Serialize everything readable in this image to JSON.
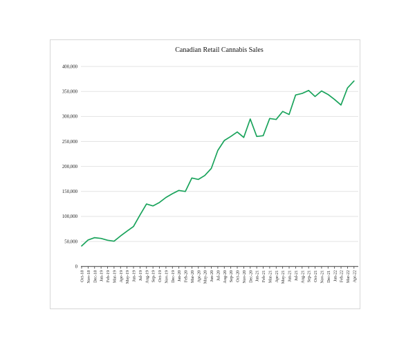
{
  "card": {
    "border_color": "#d6d6d6",
    "background": "#ffffff"
  },
  "chart_data": {
    "type": "line",
    "title": "Canadian Retail Cannabis Sales",
    "xlabel": "",
    "ylabel": "",
    "legend": "none",
    "grid": "horizontal",
    "line_color": "#19a35b",
    "grid_color": "#e3e3e3",
    "axis_color": "#3a3a3a",
    "ylim": [
      0,
      400000
    ],
    "yticks": [
      [
        0,
        "0"
      ],
      [
        50000,
        "50,000"
      ],
      [
        100000,
        "100,000"
      ],
      [
        150000,
        "150,000"
      ],
      [
        200000,
        "200,000"
      ],
      [
        250000,
        "250,000"
      ],
      [
        300000,
        "300,000"
      ],
      [
        350000,
        "350,000"
      ],
      [
        400000,
        "400,000"
      ]
    ],
    "categories": [
      "Oct-18",
      "Nov-18",
      "Dec-18",
      "Jan-19",
      "Feb-19",
      "Mar-19",
      "Apr-19",
      "May-19",
      "Jun-19",
      "Jul-19",
      "Aug-19",
      "Sep-19",
      "Oct-19",
      "Nov-19",
      "Dec-19",
      "Jan-20",
      "Feb-20",
      "Mar-20",
      "Apr-20",
      "May-20",
      "Jun-20",
      "Jul-20",
      "Aug-20",
      "Sep-20",
      "Oct-20",
      "Nov-20",
      "Dec-20",
      "Jan-21",
      "Feb-21",
      "Mar-21",
      "Apr-21",
      "May-21",
      "Jun-21",
      "Jul-21",
      "Aug-21",
      "Sep-21",
      "Oct-21",
      "Nov-21",
      "Dec-21",
      "Jan-22",
      "Feb-22",
      "Mar-22",
      "Apr-22"
    ],
    "values": [
      41000,
      53000,
      57500,
      56000,
      52500,
      50500,
      61000,
      70500,
      80000,
      103000,
      125000,
      121000,
      128000,
      138000,
      145500,
      152000,
      150000,
      177000,
      174000,
      182000,
      196000,
      232000,
      252000,
      260000,
      269000,
      258000,
      295000,
      260000,
      261500,
      296000,
      294000,
      310000,
      304000,
      343000,
      346000,
      352000,
      340000,
      351000,
      344000,
      334000,
      323000,
      357000,
      371000
    ]
  }
}
